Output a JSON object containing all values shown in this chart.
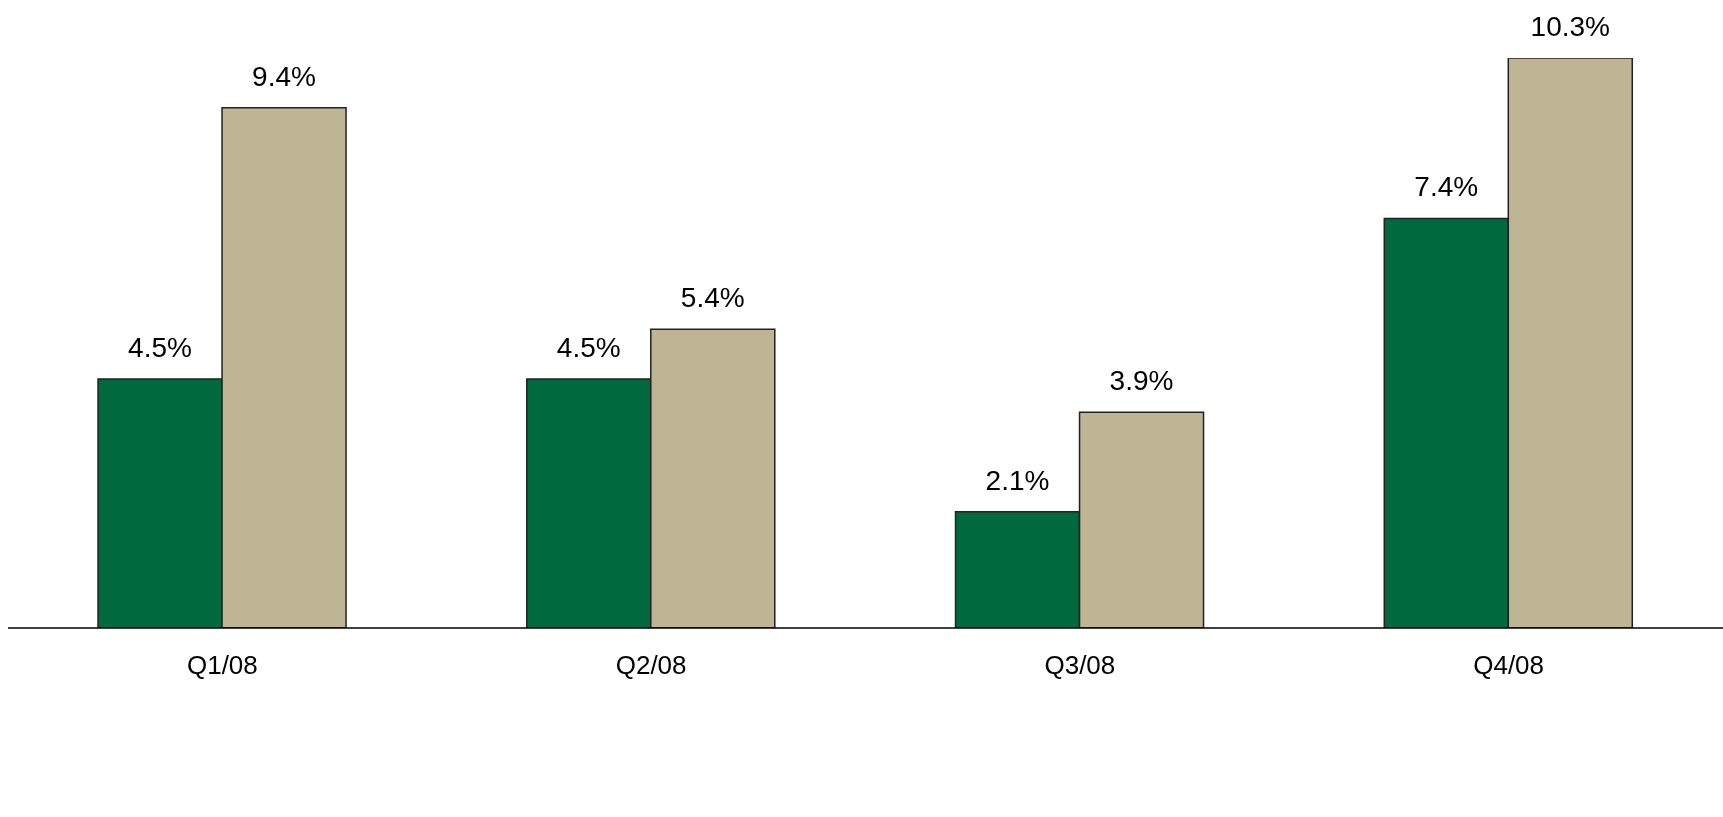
{
  "chart_data": {
    "type": "bar",
    "categories": [
      "Q1/08",
      "Q2/08",
      "Q3/08",
      "Q4/08"
    ],
    "series": [
      {
        "color": "#00693e",
        "values": [
          4.5,
          4.5,
          2.1,
          7.4
        ],
        "value_labels": [
          "4.5%",
          "4.5%",
          "2.1%",
          "7.4%"
        ]
      },
      {
        "color": "#bdb594",
        "values": [
          9.4,
          5.4,
          3.9,
          10.3
        ],
        "value_labels": [
          "9.4%",
          "5.4%",
          "3.9%",
          "10.3%"
        ]
      }
    ]
  }
}
